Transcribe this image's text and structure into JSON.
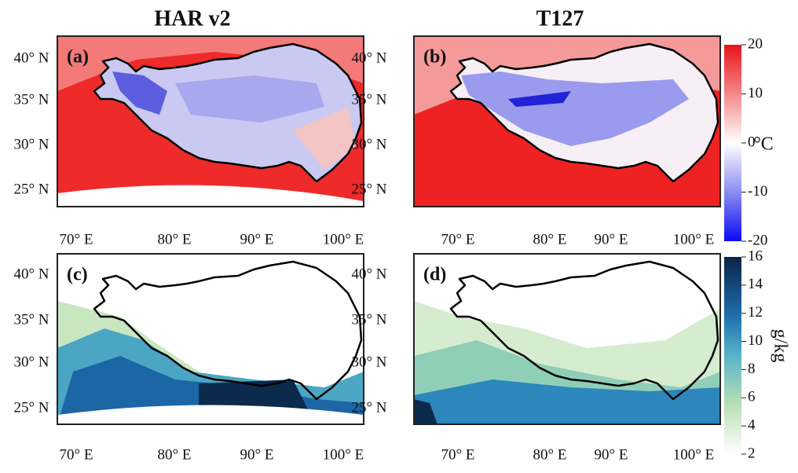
{
  "columns": [
    "HAR v2",
    "T127"
  ],
  "panels": [
    {
      "label": "(a)"
    },
    {
      "label": "(b)"
    },
    {
      "label": "(c)"
    },
    {
      "label": "(d)"
    }
  ],
  "lat_labels": [
    "40° N",
    "35° N",
    "30° N",
    "25° N"
  ],
  "lon_labels": [
    "70° E",
    "80° E",
    "90° E",
    "100° E"
  ],
  "colorbars": [
    {
      "unit": "°C",
      "ticks": [
        20,
        10,
        0,
        -10,
        -20
      ],
      "lim": [
        -20,
        20
      ]
    },
    {
      "unit": "g/kg",
      "ticks": [
        16,
        14,
        12,
        10,
        8,
        6,
        4,
        2
      ],
      "lim": [
        2,
        16
      ]
    }
  ]
}
